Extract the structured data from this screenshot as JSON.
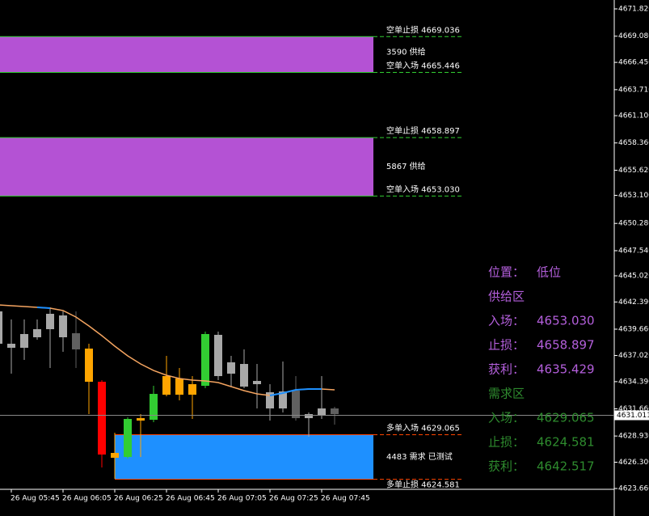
{
  "chart_data": {
    "type": "candlestick",
    "categories": [
      null,
      "26 Aug 05:45",
      null,
      null,
      null,
      "26 Aug 06:05",
      null,
      null,
      null,
      "26 Aug 06:25",
      null,
      null,
      null,
      "26 Aug 06:45",
      null,
      null,
      null,
      "26 Aug 07:05",
      null,
      null,
      null,
      "26 Aug 07:25",
      null,
      null,
      null,
      "26 Aug 07:45",
      null
    ],
    "open": [
      4638.197,
      4637.791,
      4637.791,
      4638.846,
      4639.658,
      4641.039,
      4639.252,
      4637.709,
      4634.38,
      4627.233,
      4626.827,
      4630.725,
      4630.562,
      4634.948,
      4634.704,
      4634.136,
      4633.973,
      4639.09,
      4636.329,
      4636.166,
      4634.461,
      4633.324,
      4631.699,
      4633.486,
      4631.131,
      4631.05,
      4631.699
    ],
    "high": [
      4642.257,
      4640.633,
      4640.633,
      4640.633,
      4641.851,
      4641.445,
      4641.445,
      4638.197,
      4634.542,
      4629.263,
      4630.806,
      4631.131,
      4633.973,
      4636.978,
      4635.76,
      4634.948,
      4639.415,
      4639.415,
      4636.978,
      4637.628,
      4636.166,
      4634.136,
      4636.41,
      4634.948,
      4631.293,
      4634.948,
      4631.862
    ],
    "low": [
      4637.791,
      4635.192,
      4636.572,
      4638.603,
      4635.76,
      4637.384,
      4635.76,
      4631.131,
      4625.771,
      4624.634,
      4626.664,
      4626.827,
      4630.319,
      4632.918,
      4632.512,
      4630.644,
      4633.73,
      4634.542,
      4633.892,
      4633.73,
      4631.699,
      4630.481,
      4631.293,
      4630.481,
      4628.857,
      4630.644,
      4630.075
    ],
    "close": [
      4641.445,
      4638.197,
      4639.171,
      4639.658,
      4641.202,
      4638.846,
      4637.628,
      4634.38,
      4627.07,
      4626.745,
      4630.644,
      4630.481,
      4633.161,
      4633.08,
      4633.08,
      4633.08,
      4639.171,
      4634.948,
      4635.192,
      4633.892,
      4634.136,
      4631.699,
      4633.405,
      4630.725,
      4630.725,
      4631.699,
      4631.131
    ],
    "colors": [
      "#a8a8a8",
      "#a8a8a8",
      "#a8a8a8",
      "#a8a8a8",
      "#a8a8a8",
      "#a8a8a8",
      "#606060",
      "#ffa500",
      "#ff0000",
      "#ffa500",
      "#32cd32",
      "#ffa500",
      "#32cd32",
      "#ffa500",
      "#ffa500",
      "#ffa500",
      "#32cd32",
      "#a8a8a8",
      "#a8a8a8",
      "#a8a8a8",
      "#a8a8a8",
      "#a8a8a8",
      "#a8a8a8",
      "#606060",
      "#a8a8a8",
      "#a8a8a8",
      "#606060"
    ],
    "lines": [
      {
        "color": "#f4a460",
        "values": [
          4642.095,
          4642.014,
          4641.932,
          4641.851,
          4641.77,
          4641.527,
          4640.877,
          4639.984,
          4639.009,
          4637.953,
          4636.978,
          4636.166,
          4635.516,
          4635.029,
          4634.704,
          4634.542,
          4634.461,
          4634.299,
          4633.892,
          4633.486,
          4633.161,
          4632.999,
          4633.242,
          4633.567,
          4633.648,
          4633.648,
          4633.567
        ]
      },
      {
        "color": "#1e90ff",
        "values": [
          null,
          null,
          null,
          4641.851,
          4641.77,
          null,
          null,
          null,
          null,
          null,
          null,
          null,
          null,
          null,
          null,
          null,
          null,
          null,
          null,
          null,
          null,
          4632.999,
          4633.242,
          4633.567,
          4633.648,
          4633.648,
          null
        ]
      }
    ],
    "ylim": [
      4623.66,
      4671.82
    ],
    "yticks": [
      {
        "value": 4623.66,
        "label": "4623.660"
      },
      {
        "value": 4626.3,
        "label": "4626.300"
      },
      {
        "value": 4628.93,
        "label": "4628.930"
      },
      {
        "value": 4631.66,
        "label": "4631.660"
      },
      {
        "value": 4634.39,
        "label": "4634.390"
      },
      {
        "value": 4637.02,
        "label": "4637.020"
      },
      {
        "value": 4639.66,
        "label": "4639.660"
      },
      {
        "value": 4642.39,
        "label": "4642.390"
      },
      {
        "value": 4645.02,
        "label": "4645.020"
      },
      {
        "value": 4647.54,
        "label": "4647.540"
      },
      {
        "value": 4650.28,
        "label": "4650.280"
      },
      {
        "value": 4653.1,
        "label": "4653.100"
      },
      {
        "value": 4655.62,
        "label": "4655.620"
      },
      {
        "value": 4658.36,
        "label": "4658.360"
      },
      {
        "value": 4661.1,
        "label": "4661.100"
      },
      {
        "value": 4663.71,
        "label": "4663.710"
      },
      {
        "value": 4666.45,
        "label": "4666.450"
      },
      {
        "value": 4669.08,
        "label": "4669.080"
      },
      {
        "value": 4671.82,
        "label": "4671.820"
      }
    ],
    "current_price": {
      "value": 4631.011,
      "label": "4631.011"
    },
    "zones": [
      {
        "top": 4669.036,
        "bottom": 4665.446,
        "label": "3590 供给",
        "top_label": "空单止损 4669.036",
        "bottom_label": "空单入场 4665.446",
        "fill": "#b452d4",
        "line_color": "#32cd32"
      },
      {
        "top": 4658.897,
        "bottom": 4653.03,
        "label": "5867 供给",
        "top_label": "空单止损 4658.897",
        "bottom_label": "空单入场 4653.030",
        "fill": "#b452d4",
        "line_color": "#32cd32"
      },
      {
        "top": 4629.065,
        "bottom": 4624.581,
        "label": "4483 需求 已测试",
        "top_label": "多单入场 4629.065",
        "bottom_label": "多单止损 4624.581",
        "fill": "#1e90ff",
        "line_color": "#ff4500"
      }
    ],
    "panel": [
      {
        "color": "#b45fdc",
        "texts": [
          "位置：",
          "低位"
        ]
      },
      {
        "color": "#b45fdc",
        "texts": [
          "供给区"
        ]
      },
      {
        "color": "#b45fdc",
        "texts": [
          "入场：",
          "4653.030"
        ]
      },
      {
        "color": "#b45fdc",
        "texts": [
          "止损：",
          "4658.897"
        ]
      },
      {
        "color": "#b45fdc",
        "texts": [
          "获利：",
          "4635.429"
        ]
      },
      {
        "color": "#2e8b2e",
        "texts": [
          "需求区"
        ]
      },
      {
        "color": "#2e8b2e",
        "texts": [
          "入场：",
          "4629.065"
        ]
      },
      {
        "color": "#2e8b2e",
        "texts": [
          "止损：",
          "4624.581"
        ]
      },
      {
        "color": "#2e8b2e",
        "texts": [
          "获利：",
          "4642.517"
        ]
      }
    ]
  }
}
